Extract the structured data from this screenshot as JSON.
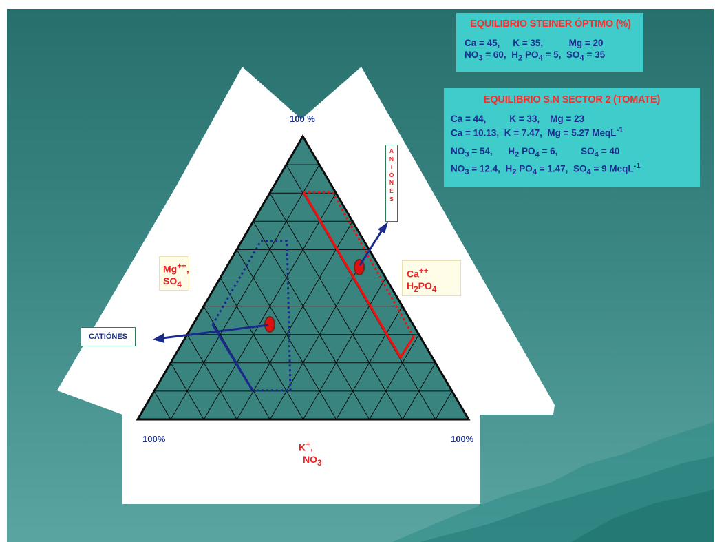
{
  "steiner_box": {
    "title": "EQUILIBRIO STEINER ÓPTIMO (%)",
    "cations": {
      "ca": "Ca = 45,",
      "k": "K = 35,",
      "mg": "Mg = 20"
    },
    "anions": {
      "no3": "NO",
      "no3_sub": "3",
      "no3_val": " = 60,",
      "h2po4_a": "H",
      "h2po4_sub": "2",
      "h2po4_b": " PO",
      "h2po4_sub2": "4",
      "h2po4_val": " = 5,",
      "so4": "SO",
      "so4_sub": "4",
      "so4_val": " = 35"
    }
  },
  "sn_box": {
    "title": "EQUILIBRIO S.N SECTOR 2 (TOMATE)",
    "cations_pct": {
      "ca": "Ca = 44,",
      "k": "K = 33,",
      "mg": "Mg = 23"
    },
    "cations_meq": {
      "ca": "Ca = 10.13,",
      "k": "K = 7.47,",
      "mg": "Mg = 5.27 MeqL",
      "sup": "-1"
    },
    "anions_pct": {
      "no3": "NO",
      "sub": "3",
      "no3_val": " = 54,",
      "h2": "H",
      "h2_sub": "2",
      "po4": " PO",
      "po4_sub": "4",
      "po4_val": " = 6,",
      "so4": "SO",
      "so4_sub": "4",
      "so4_val": " = 40"
    },
    "anions_meq": {
      "no3": "NO",
      "sub": "3",
      "no3_val": " = 12.4,",
      "h2": "H",
      "h2_sub": "2",
      "po4": " PO",
      "po4_sub": "4",
      "po4_val": " = 1.47,",
      "so4": "SO",
      "so4_sub": "4",
      "so4_val": " = 9 MeqL",
      "sup": "-1"
    }
  },
  "diagram": {
    "top_percent": "100 %",
    "left_percent": "100%",
    "right_percent": "100%",
    "left_label": {
      "mg": "Mg",
      "mg_sup": "++",
      "comma": ",",
      "so": "SO",
      "so_sub": "4"
    },
    "right_label": {
      "ca": "Ca",
      "ca_sup": "++",
      "h": "H",
      "h_sub": "2",
      "po": "PO",
      "po_sub": "4"
    },
    "bottom_label": {
      "k": "K",
      "k_sup": "+",
      "comma": ",",
      "no": "NO",
      "no_sub": "3"
    },
    "cationes_tag": "CATIÓNES",
    "aniones_tag": [
      "A",
      "N",
      "I",
      "Ó",
      "N",
      "E",
      "S"
    ]
  },
  "colors": {
    "background_top": "#276f6c",
    "background_bottom": "#5aa5a1",
    "triangle_fill": "#3a8480",
    "info_box": "#3fcccb",
    "title_red": "#ff2a2a",
    "text_blue": "#1a2f8f",
    "anion_line": "#ee1111",
    "cation_line": "#1a2a8c",
    "marker": "#e01010"
  }
}
